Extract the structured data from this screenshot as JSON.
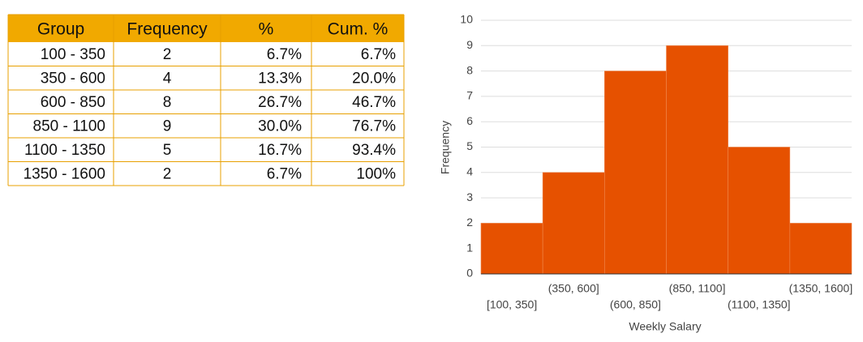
{
  "table": {
    "header": [
      "Group",
      "Frequency",
      "%",
      "Cum. %"
    ],
    "rows": [
      [
        "100 - 350",
        "2",
        "6.7%",
        "6.7%"
      ],
      [
        "350 - 600",
        "4",
        "13.3%",
        "20.0%"
      ],
      [
        "600 - 850",
        "8",
        "26.7%",
        "46.7%"
      ],
      [
        "850 - 1100",
        "9",
        "30.0%",
        "76.7%"
      ],
      [
        "1100 - 1350",
        "5",
        "16.7%",
        "93.4%"
      ],
      [
        "1350 - 1600",
        "2",
        "6.7%",
        "100%"
      ]
    ]
  },
  "chart_data": {
    "type": "bar",
    "categories": [
      "[100, 350]",
      "(350, 600]",
      "(600, 850]",
      "(850, 1100]",
      "(1100, 1350]",
      "(1350, 1600]"
    ],
    "values": [
      2,
      4,
      8,
      9,
      5,
      2
    ],
    "color": "#e65100",
    "xlabel": "Weekly Salary",
    "ylabel": "Frequency",
    "ylim": [
      0,
      10
    ],
    "yticks": [
      0,
      1,
      2,
      3,
      4,
      5,
      6,
      7,
      8,
      9,
      10
    ],
    "grid": true
  }
}
